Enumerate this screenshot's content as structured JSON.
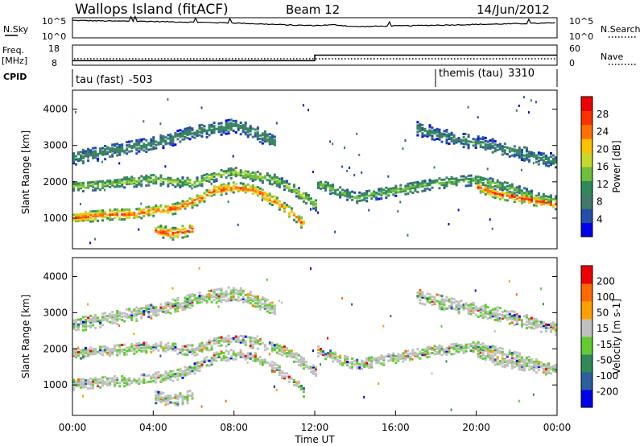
{
  "header": {
    "title": "Wallops Island (fitACF)",
    "beam": "Beam 12",
    "date": "14/Jun/2012"
  },
  "strip_panels": {
    "nsky": {
      "label": "N.Sky",
      "ytick_top": "10^5",
      "ytick_bottom": "10^0"
    },
    "nsearch": {
      "label": "N.Search",
      "ytick_top": "10^5",
      "ytick_bottom": "10^0"
    },
    "freq": {
      "label_line1": "Freq.",
      "label_line2": "[MHz]",
      "ytick_top": "18",
      "ytick_bottom": "8"
    },
    "nave": {
      "label": "Nave",
      "ytick_top": "60",
      "ytick_bottom": "0"
    },
    "cpid": {
      "label": "CPID",
      "modes": [
        {
          "name": "tau (fast)",
          "id": "-503"
        },
        {
          "name": "themis (tau)",
          "id": "3310"
        }
      ]
    }
  },
  "colors": {
    "power_scale": [
      "#0000ee",
      "#2050a8",
      "#3f7a6a",
      "#2e8b57",
      "#6fbf3a",
      "#c8d82a",
      "#ffc000",
      "#ff7000",
      "#ff3000",
      "#ee0000"
    ],
    "velocity_scale": [
      "#ee0000",
      "#ff6a00",
      "#ffa000",
      "#c0c0c0",
      "#60cc30",
      "#2e8b57",
      "#2a5fa0",
      "#0000ee"
    ],
    "ground_scatter": "#c0c0c0"
  },
  "chart_data": [
    {
      "type": "line",
      "name": "nsky_nsearch_strip",
      "x": [
        0,
        1,
        2,
        3,
        4,
        5,
        6,
        7,
        8,
        9,
        10,
        11,
        12,
        13,
        14,
        15,
        16,
        17,
        18,
        19,
        20,
        21,
        22,
        23,
        24
      ],
      "nsky_log10": [
        4.5,
        4.4,
        4.3,
        4.3,
        4.2,
        4.1,
        4.0,
        3.9,
        3.8,
        3.6,
        3.4,
        3.2,
        3.1,
        3.3,
        2.8,
        2.9,
        3.0,
        3.1,
        3.2,
        3.3,
        3.4,
        3.5,
        3.6,
        3.7,
        3.8
      ],
      "ylim": [
        0,
        5
      ]
    },
    {
      "type": "line",
      "name": "frequency_strip",
      "freq_steps": [
        {
          "from": 0,
          "to": 12,
          "value": 10
        },
        {
          "from": 12,
          "to": 24,
          "value": 13
        }
      ],
      "ylim": [
        8,
        18
      ]
    },
    {
      "type": "heatmap",
      "name": "power",
      "xlabel": "",
      "ylabel": "Slant Range [km]",
      "colorbar_label": "Power [dB]",
      "colorbar_ticks": [
        "28",
        "24",
        "20",
        "16",
        "12",
        "8",
        "4"
      ],
      "colorbar_range": [
        0,
        32
      ],
      "xlim": [
        0,
        24
      ],
      "ylim": [
        180,
        4500
      ],
      "yticks": [
        "4000",
        "3000",
        "2000",
        "1000"
      ],
      "ytick_values": [
        4000,
        3000,
        2000,
        1000
      ],
      "bands": [
        {
          "pts": [
            [
              0,
              1050
            ],
            [
              1,
              1100
            ],
            [
              2,
              1150
            ],
            [
              3,
              1150
            ],
            [
              4,
              1250
            ],
            [
              5,
              1300
            ],
            [
              6,
              1500
            ],
            [
              7,
              1800
            ],
            [
              8,
              1900
            ],
            [
              9,
              1800
            ],
            [
              10,
              1500
            ],
            [
              11,
              1100
            ],
            [
              11.5,
              800
            ]
          ],
          "width": 150,
          "level": 26
        },
        {
          "pts": [
            [
              0,
              1900
            ],
            [
              2,
              2000
            ],
            [
              4,
              2100
            ],
            [
              6,
              2000
            ],
            [
              7,
              2200
            ],
            [
              8,
              2300
            ],
            [
              10,
              2100
            ],
            [
              11,
              1800
            ],
            [
              12,
              1400
            ]
          ],
          "width": 150,
          "level": 16
        },
        {
          "pts": [
            [
              0,
              2700
            ],
            [
              2,
              2900
            ],
            [
              4,
              3100
            ],
            [
              6,
              3400
            ],
            [
              7,
              3500
            ],
            [
              8,
              3600
            ],
            [
              9,
              3400
            ],
            [
              10,
              3100
            ]
          ],
          "width": 200,
          "level": 10
        },
        {
          "pts": [
            [
              4,
              700
            ],
            [
              5,
              600
            ],
            [
              6,
              750
            ]
          ],
          "width": 160,
          "level": 28
        },
        {
          "pts": [
            [
              12,
              2000
            ],
            [
              13,
              1800
            ],
            [
              14,
              1600
            ],
            [
              16,
              1800
            ],
            [
              18,
              2000
            ],
            [
              20,
              2100
            ],
            [
              22,
              1800
            ],
            [
              23,
              1600
            ],
            [
              24,
              1500
            ]
          ],
          "width": 150,
          "level": 14
        },
        {
          "pts": [
            [
              20,
              1900
            ],
            [
              21,
              1700
            ],
            [
              22,
              1600
            ],
            [
              23,
              1500
            ],
            [
              24,
              1400
            ]
          ],
          "width": 130,
          "level": 28
        },
        {
          "pts": [
            [
              17,
              3500
            ],
            [
              19,
              3200
            ],
            [
              21,
              3000
            ],
            [
              23,
              2700
            ],
            [
              24,
              2600
            ]
          ],
          "width": 180,
          "level": 10
        }
      ]
    },
    {
      "type": "heatmap",
      "name": "velocity",
      "xlabel": "Time UT",
      "ylabel": "Slant Range [km]",
      "colorbar_label": "Velocity [m s-1]",
      "colorbar_ticks": [
        "200",
        "100",
        "50",
        "15",
        "-15",
        "-50",
        "-100",
        "-200"
      ],
      "xlim": [
        0,
        24
      ],
      "ylim": [
        180,
        4500
      ],
      "yticks": [
        "4000",
        "3000",
        "2000",
        "1000"
      ],
      "ytick_values": [
        4000,
        3000,
        2000,
        1000
      ],
      "xticks": [
        "00:00",
        "04:00",
        "08:00",
        "12:00",
        "16:00",
        "20:00",
        "00:00"
      ],
      "xtick_values": [
        0,
        4,
        8,
        12,
        16,
        20,
        24
      ]
    }
  ]
}
